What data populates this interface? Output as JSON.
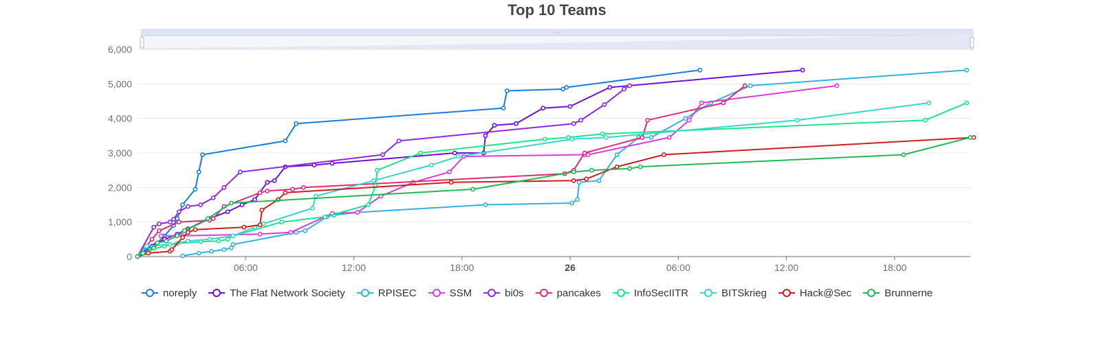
{
  "chart_data": {
    "type": "line",
    "title": "Top 10 Teams",
    "xlabel": "",
    "ylabel": "",
    "ylim": [
      0,
      6000
    ],
    "y_ticks": [
      "0",
      "1,000",
      "2,000",
      "3,000",
      "4,000",
      "5,000",
      "6,000"
    ],
    "x_range_hours": [
      0,
      46.2
    ],
    "x_ticks": [
      {
        "hour": 6,
        "label": "06:00",
        "bold": false
      },
      {
        "hour": 12,
        "label": "12:00",
        "bold": false
      },
      {
        "hour": 18,
        "label": "18:00",
        "bold": false
      },
      {
        "hour": 24,
        "label": "26",
        "bold": true
      },
      {
        "hour": 30,
        "label": "06:00",
        "bold": false
      },
      {
        "hour": 36,
        "label": "12:00",
        "bold": false
      },
      {
        "hour": 42,
        "label": "18:00",
        "bold": false
      }
    ],
    "grid": true,
    "legend_position": "bottom-left",
    "has_zoom_slider": true,
    "series": [
      {
        "name": "noreply",
        "color": "#1a7ae0",
        "points": [
          [
            0,
            0
          ],
          [
            0.3,
            200
          ],
          [
            1,
            350
          ],
          [
            1.5,
            600
          ],
          [
            2,
            900
          ],
          [
            2.2,
            1100
          ],
          [
            2.5,
            1500
          ],
          [
            3.2,
            1950
          ],
          [
            3.4,
            2450
          ],
          [
            3.6,
            2950
          ],
          [
            8.2,
            3350
          ],
          [
            8.8,
            3850
          ],
          [
            20.3,
            4300
          ],
          [
            20.5,
            4800
          ],
          [
            23.6,
            4850
          ],
          [
            23.8,
            4900
          ],
          [
            31.2,
            5400
          ]
        ]
      },
      {
        "name": "The Flat Network Society",
        "color": "#6a10d8",
        "points": [
          [
            0,
            0
          ],
          [
            0.8,
            300
          ],
          [
            1.5,
            500
          ],
          [
            2.2,
            650
          ],
          [
            2.8,
            800
          ],
          [
            4,
            1100
          ],
          [
            5,
            1300
          ],
          [
            5.8,
            1500
          ],
          [
            6.5,
            1650
          ],
          [
            7.2,
            2150
          ],
          [
            7.6,
            2200
          ],
          [
            8.2,
            2600
          ],
          [
            9.8,
            2650
          ],
          [
            10.8,
            2700
          ],
          [
            17.6,
            3000
          ],
          [
            19.2,
            3000
          ],
          [
            19.3,
            3500
          ],
          [
            19.8,
            3800
          ],
          [
            21,
            3850
          ],
          [
            22.5,
            4300
          ],
          [
            24,
            4350
          ],
          [
            26.2,
            4900
          ],
          [
            36.9,
            5400
          ]
        ]
      },
      {
        "name": "RPISEC",
        "color": "#2fb2e0",
        "points": [
          [
            2.5,
            20
          ],
          [
            3.4,
            100
          ],
          [
            4.1,
            150
          ],
          [
            4.8,
            200
          ],
          [
            5.2,
            250
          ],
          [
            5.3,
            350
          ],
          [
            8.8,
            700
          ],
          [
            9.3,
            750
          ],
          [
            10.5,
            1150
          ],
          [
            10.9,
            1200
          ],
          [
            12.2,
            1280
          ],
          [
            19.3,
            1500
          ],
          [
            24.1,
            1550
          ],
          [
            24.4,
            1650
          ],
          [
            24.5,
            2150
          ],
          [
            25.6,
            2200
          ],
          [
            26.6,
            2950
          ],
          [
            27.8,
            3450
          ],
          [
            28.5,
            3450
          ],
          [
            30.4,
            4000
          ],
          [
            31.8,
            4450
          ],
          [
            34,
            4950
          ],
          [
            46,
            5400
          ]
        ]
      },
      {
        "name": "SSM",
        "color": "#d63ce0",
        "points": [
          [
            1.3,
            600
          ],
          [
            2.5,
            600
          ],
          [
            6.8,
            650
          ],
          [
            8.5,
            700
          ],
          [
            10.8,
            1250
          ],
          [
            12.2,
            1280
          ],
          [
            13.5,
            1750
          ],
          [
            15.3,
            2150
          ],
          [
            17.3,
            2450
          ],
          [
            18.1,
            2900
          ],
          [
            24.8,
            2950
          ],
          [
            25,
            2950
          ],
          [
            29.5,
            3450
          ],
          [
            30.6,
            3950
          ],
          [
            31.3,
            4450
          ],
          [
            38.8,
            4950
          ]
        ]
      },
      {
        "name": "bi0s",
        "color": "#8f25e6",
        "points": [
          [
            0,
            0
          ],
          [
            0.9,
            850
          ],
          [
            1.2,
            950
          ],
          [
            1.8,
            1000
          ],
          [
            2,
            1080
          ],
          [
            2.3,
            1300
          ],
          [
            2.8,
            1450
          ],
          [
            3.5,
            1500
          ],
          [
            4.2,
            1700
          ],
          [
            4.8,
            2000
          ],
          [
            5.7,
            2450
          ],
          [
            13.6,
            2950
          ],
          [
            14.5,
            3350
          ],
          [
            24.2,
            3850
          ],
          [
            24.6,
            3950
          ],
          [
            25.9,
            4400
          ],
          [
            27,
            4850
          ],
          [
            27.3,
            4950
          ]
        ]
      },
      {
        "name": "pancakes",
        "color": "#e02a74",
        "points": [
          [
            0,
            0
          ],
          [
            0.8,
            500
          ],
          [
            1.2,
            750
          ],
          [
            2.3,
            1000
          ],
          [
            4,
            1050
          ],
          [
            4.2,
            1100
          ],
          [
            4.8,
            1450
          ],
          [
            6.8,
            1850
          ],
          [
            7.2,
            1900
          ],
          [
            8.6,
            1950
          ],
          [
            9.2,
            2000
          ],
          [
            23.7,
            2400
          ],
          [
            24.2,
            2500
          ],
          [
            24.8,
            3000
          ],
          [
            28,
            3450
          ],
          [
            28.3,
            3950
          ],
          [
            32.5,
            4450
          ],
          [
            33.7,
            4950
          ]
        ]
      },
      {
        "name": "InfoSecIITR",
        "color": "#19e68a",
        "points": [
          [
            0,
            0
          ],
          [
            0.7,
            200
          ],
          [
            1.5,
            300
          ],
          [
            2.2,
            380
          ],
          [
            3.5,
            430
          ],
          [
            4.5,
            450
          ],
          [
            5,
            500
          ],
          [
            5.3,
            600
          ],
          [
            8,
            1000
          ],
          [
            10.4,
            1150
          ],
          [
            12.8,
            1500
          ],
          [
            13.2,
            2050
          ],
          [
            13.3,
            2500
          ],
          [
            15.7,
            3000
          ],
          [
            22.6,
            3400
          ],
          [
            23.9,
            3450
          ],
          [
            25.8,
            3550
          ],
          [
            43.7,
            3950
          ],
          [
            46,
            4450
          ]
        ]
      },
      {
        "name": "BITSkrieg",
        "color": "#32d8c8",
        "points": [
          [
            0,
            0
          ],
          [
            0.5,
            300
          ],
          [
            1.8,
            350
          ],
          [
            2.8,
            450
          ],
          [
            4,
            500
          ],
          [
            5.3,
            600
          ],
          [
            6.5,
            850
          ],
          [
            7,
            950
          ],
          [
            9.7,
            1400
          ],
          [
            9.9,
            1750
          ],
          [
            13.1,
            2200
          ],
          [
            16.3,
            2650
          ],
          [
            17.8,
            2900
          ],
          [
            24.1,
            3400
          ],
          [
            26,
            3450
          ],
          [
            36.6,
            3950
          ],
          [
            43.9,
            4450
          ]
        ]
      },
      {
        "name": "Hack@Sec",
        "color": "#cc1e1e",
        "points": [
          [
            0,
            0
          ],
          [
            0.6,
            100
          ],
          [
            1.8,
            150
          ],
          [
            1.9,
            200
          ],
          [
            2.5,
            550
          ],
          [
            2.8,
            700
          ],
          [
            3.2,
            780
          ],
          [
            5.9,
            850
          ],
          [
            6.8,
            920
          ],
          [
            6.9,
            1350
          ],
          [
            7.8,
            1650
          ],
          [
            8.2,
            1850
          ],
          [
            17.4,
            2150
          ],
          [
            24.2,
            2200
          ],
          [
            24.9,
            2250
          ],
          [
            26.6,
            2600
          ],
          [
            29.2,
            2950
          ],
          [
            46.4,
            3450
          ]
        ]
      },
      {
        "name": "Brunnerne",
        "color": "#1eb855",
        "points": [
          [
            0,
            0
          ],
          [
            0.3,
            100
          ],
          [
            0.9,
            250
          ],
          [
            1.1,
            400
          ],
          [
            1.6,
            450
          ],
          [
            2.2,
            600
          ],
          [
            2.6,
            750
          ],
          [
            3.9,
            1100
          ],
          [
            5.2,
            1550
          ],
          [
            18.6,
            1950
          ],
          [
            24.2,
            2450
          ],
          [
            25.2,
            2500
          ],
          [
            27.3,
            2550
          ],
          [
            27.9,
            2600
          ],
          [
            42.5,
            2950
          ],
          [
            46.2,
            3450
          ]
        ]
      }
    ]
  }
}
